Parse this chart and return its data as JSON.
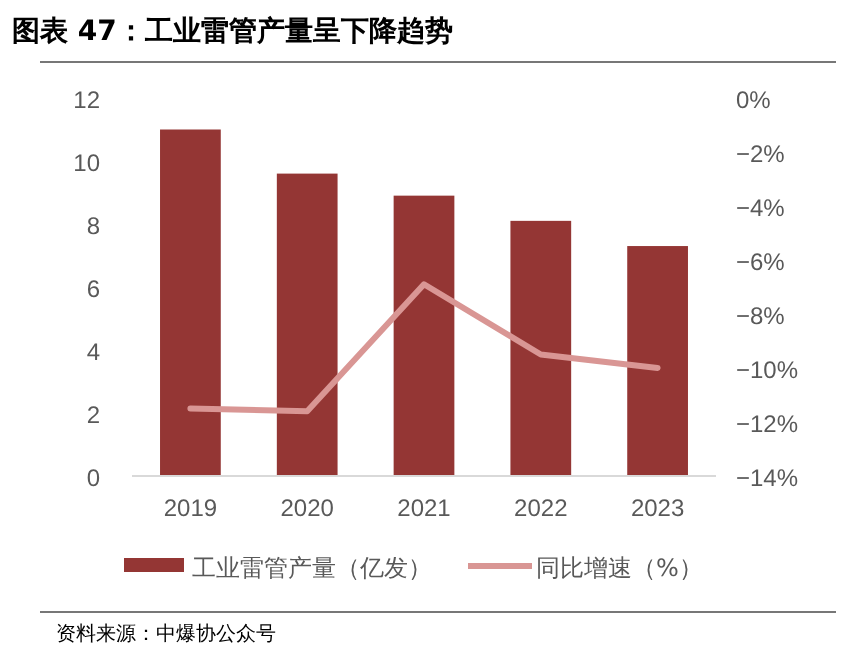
{
  "chart_data": {
    "type": "bar",
    "title": "图表 47：工业雷管产量呈下降趋势",
    "categories": [
      "2019",
      "2020",
      "2021",
      "2022",
      "2023"
    ],
    "series": [
      {
        "name": "工业雷管产量（亿发）",
        "color": "#943634",
        "values": [
          11.0,
          9.6,
          8.9,
          8.1,
          7.3
        ]
      },
      {
        "name": "同比增速（%）",
        "type": "line",
        "axis": "y2",
        "color": "#d99694",
        "values": [
          -11.5,
          -11.6,
          -6.9,
          -9.5,
          -10.0
        ]
      }
    ],
    "ylim": [
      0,
      12
    ],
    "yticks": [
      0,
      2,
      4,
      6,
      8,
      10,
      12
    ],
    "y2lim": [
      -14,
      0
    ],
    "y2ticks": [
      {
        "value": 0,
        "label": "0%"
      },
      {
        "value": -2,
        "label": "−2%"
      },
      {
        "value": -4,
        "label": "−4%"
      },
      {
        "value": -6,
        "label": "−6%"
      },
      {
        "value": -8,
        "label": "−8%"
      },
      {
        "value": -10,
        "label": "−10%"
      },
      {
        "value": -12,
        "label": "−12%"
      },
      {
        "value": -14,
        "label": "−14%"
      }
    ],
    "grid": false,
    "legend": "bottom",
    "marker": "none",
    "annotations": [
      "资料来源：中爆协公众号"
    ]
  }
}
